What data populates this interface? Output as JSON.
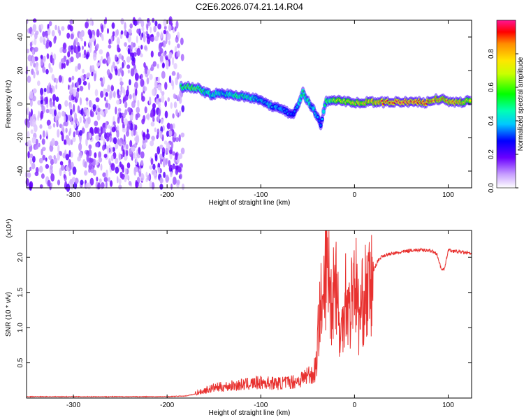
{
  "title": "C2E6.2026.074.21.14.R04",
  "chart_data": [
    {
      "type": "heatmap",
      "xlabel": "Height of straight line (km)",
      "ylabel": "Frequency (Hz)",
      "xlim": [
        -350,
        125
      ],
      "ylim": [
        -50,
        50
      ],
      "xticks": [
        -300,
        -200,
        -100,
        0,
        100
      ],
      "yticks": [
        -40,
        -20,
        0,
        20,
        40
      ],
      "colorbar": {
        "label": "Normalized spectral amplitude",
        "range": [
          0,
          1
        ],
        "ticks": [
          "0.0",
          "0.2",
          "0.4",
          "0.6",
          "0.8"
        ]
      },
      "noise_region_x": [
        -350,
        -183
      ],
      "ridge": [
        {
          "x": -185,
          "f": 10,
          "amp": 0.55
        },
        {
          "x": -170,
          "f": 10,
          "amp": 0.6
        },
        {
          "x": -155,
          "f": 6,
          "amp": 0.45
        },
        {
          "x": -140,
          "f": 6,
          "amp": 0.45
        },
        {
          "x": -125,
          "f": 5,
          "amp": 0.5
        },
        {
          "x": -110,
          "f": 4,
          "amp": 0.45
        },
        {
          "x": -95,
          "f": 1,
          "amp": 0.4
        },
        {
          "x": -85,
          "f": -2,
          "amp": 0.4
        },
        {
          "x": -75,
          "f": -4,
          "amp": 0.35
        },
        {
          "x": -65,
          "f": -7,
          "amp": 0.3
        },
        {
          "x": -55,
          "f": 7,
          "amp": 0.5
        },
        {
          "x": -48,
          "f": 0,
          "amp": 0.45
        },
        {
          "x": -42,
          "f": -5,
          "amp": 0.4
        },
        {
          "x": -36,
          "f": -12,
          "amp": 0.3
        },
        {
          "x": -30,
          "f": 2,
          "amp": 0.55
        },
        {
          "x": -20,
          "f": 2,
          "amp": 0.7
        },
        {
          "x": 0,
          "f": 1,
          "amp": 0.75
        },
        {
          "x": 25,
          "f": 1,
          "amp": 0.85
        },
        {
          "x": 50,
          "f": 1,
          "amp": 0.95
        },
        {
          "x": 75,
          "f": 1,
          "amp": 0.9
        },
        {
          "x": 90,
          "f": 3,
          "amp": 0.85
        },
        {
          "x": 110,
          "f": 1,
          "amp": 0.85
        },
        {
          "x": 125,
          "f": 2,
          "amp": 0.7
        }
      ]
    },
    {
      "type": "line",
      "xlabel": "Height of straight line (km)",
      "ylabel": "SNR (10 * v/v)",
      "multiplier": "(x10⁴)",
      "xlim": [
        -350,
        125
      ],
      "ylim": [
        0,
        2.38
      ],
      "xticks": [
        -300,
        -200,
        -100,
        0,
        100
      ],
      "yticks": [
        "0.5",
        "1.0",
        "1.5",
        "2.0"
      ],
      "color": "#e8312f",
      "x": [
        -350,
        -300,
        -250,
        -200,
        -180,
        -165,
        -150,
        -125,
        -100,
        -80,
        -60,
        -45,
        -40,
        -37,
        -34,
        -30,
        -25,
        -20,
        -15,
        -10,
        -5,
        0,
        5,
        10,
        15,
        20,
        25,
        30,
        40,
        50,
        60,
        70,
        80,
        88,
        92,
        96,
        100,
        110,
        125
      ],
      "y": [
        0.02,
        0.02,
        0.02,
        0.02,
        0.03,
        0.07,
        0.12,
        0.15,
        0.18,
        0.17,
        0.2,
        0.3,
        0.6,
        1.6,
        1.2,
        2.3,
        1.5,
        2.0,
        0.8,
        1.7,
        1.3,
        2.0,
        1.2,
        1.6,
        1.65,
        1.8,
        1.95,
        2.02,
        2.05,
        2.07,
        2.1,
        2.1,
        2.1,
        2.05,
        1.85,
        1.82,
        2.1,
        2.08,
        2.05
      ]
    }
  ]
}
